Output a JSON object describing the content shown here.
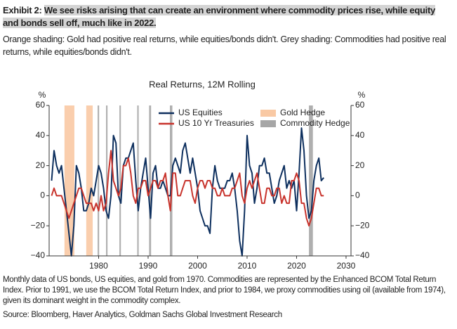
{
  "header": {
    "label": "Exhibit 2:",
    "title": "We see risks arising that can create an environment where commodity prices rise, while equity and bonds sell off, much like in 2022.",
    "subtitle": "Orange shading: Gold had positive real returns, while equities/bonds didn't. Grey shading: Commodities had positive real returns, while equities/bonds didn't."
  },
  "footer": {
    "note": "Monthly data of US bonds, US equities, and gold from 1970. Commodities are represented by the Enhanced BCOM Total Return Index. Prior to 1991, we use the BCOM Total Return Index, and prior to 1984, we proxy commodities using oil (available from 1974), given its dominant weight in the commodity complex.",
    "source": "Source: Bloomberg, Haver Analytics, Goldman Sachs Global Investment Research"
  },
  "chart_data": {
    "type": "line",
    "title": "Real Returns, 12M Rolling",
    "y_unit": "%",
    "y2_unit": "%",
    "x": [
      1970.5,
      1971,
      1971.5,
      1972,
      1972.5,
      1973,
      1973.5,
      1974,
      1974.5,
      1975,
      1975.5,
      1976,
      1976.5,
      1977,
      1977.5,
      1978,
      1978.5,
      1979,
      1979.5,
      1980,
      1980.5,
      1981,
      1981.5,
      1982,
      1982.5,
      1983,
      1983.5,
      1984,
      1984.5,
      1985,
      1985.5,
      1986,
      1986.5,
      1987,
      1987.5,
      1988,
      1988.5,
      1989,
      1989.5,
      1990,
      1990.5,
      1991,
      1991.5,
      1992,
      1992.5,
      1993,
      1993.5,
      1994,
      1994.5,
      1995,
      1995.5,
      1996,
      1996.5,
      1997,
      1997.5,
      1998,
      1998.5,
      1999,
      1999.5,
      2000,
      2000.5,
      2001,
      2001.5,
      2002,
      2002.5,
      2003,
      2003.5,
      2004,
      2004.5,
      2005,
      2005.5,
      2006,
      2006.5,
      2007,
      2007.5,
      2008,
      2008.5,
      2009,
      2009.5,
      2010,
      2010.5,
      2011,
      2011.5,
      2012,
      2012.5,
      2013,
      2013.5,
      2014,
      2014.5,
      2015,
      2015.5,
      2016,
      2016.5,
      2017,
      2017.5,
      2018,
      2018.5,
      2019,
      2019.5,
      2020,
      2020.5,
      2021,
      2021.5,
      2022,
      2022.5,
      2023,
      2023.5,
      2024,
      2024.5,
      2025,
      2025.5
    ],
    "series": [
      {
        "name": "US Equities",
        "color": "#0d2f5e",
        "values": [
          10,
          30,
          20,
          15,
          20,
          5,
          -10,
          -25,
          -40,
          -20,
          20,
          15,
          5,
          -10,
          -10,
          -5,
          5,
          0,
          10,
          20,
          15,
          5,
          -10,
          -15,
          0,
          40,
          35,
          0,
          -5,
          20,
          25,
          25,
          30,
          35,
          10,
          -10,
          5,
          15,
          25,
          5,
          -15,
          15,
          20,
          5,
          5,
          10,
          5,
          0,
          0,
          20,
          25,
          20,
          15,
          30,
          35,
          25,
          15,
          25,
          15,
          5,
          -10,
          -15,
          -20,
          -20,
          -25,
          5,
          20,
          10,
          5,
          5,
          5,
          10,
          10,
          15,
          5,
          -10,
          -30,
          -40,
          -10,
          40,
          20,
          15,
          -5,
          5,
          20,
          20,
          25,
          15,
          15,
          5,
          -5,
          0,
          10,
          15,
          20,
          5,
          10,
          5,
          10,
          -10,
          15,
          45,
          30,
          0,
          -15,
          -10,
          10,
          20,
          25,
          10,
          12
        ]
      },
      {
        "name": "US 10 Yr Treasuries",
        "color": "#c8332c",
        "values": [
          0,
          5,
          0,
          0,
          0,
          -5,
          -10,
          -15,
          -10,
          -5,
          0,
          5,
          5,
          0,
          -5,
          -5,
          -5,
          -10,
          -5,
          -10,
          0,
          -10,
          -5,
          15,
          30,
          10,
          5,
          0,
          5,
          20,
          20,
          25,
          15,
          0,
          -5,
          5,
          5,
          10,
          10,
          0,
          5,
          10,
          10,
          5,
          10,
          10,
          15,
          0,
          -10,
          15,
          15,
          0,
          0,
          5,
          10,
          10,
          10,
          0,
          -5,
          5,
          10,
          10,
          5,
          10,
          10,
          5,
          5,
          0,
          0,
          5,
          0,
          0,
          0,
          5,
          5,
          10,
          15,
          0,
          -5,
          5,
          10,
          5,
          10,
          15,
          5,
          -5,
          -5,
          5,
          5,
          0,
          0,
          5,
          5,
          -5,
          0,
          -5,
          -5,
          10,
          10,
          15,
          10,
          -5,
          -5,
          -15,
          -20,
          -15,
          -5,
          5,
          5,
          0,
          0
        ]
      }
    ],
    "bands": [
      {
        "name": "Gold Hedge",
        "color": "#f9c9a4",
        "spans": [
          [
            1973.1,
            1975.1
          ],
          [
            1977.5,
            1978.8
          ]
        ]
      },
      {
        "name": "Commodity Hedge",
        "color": "#a6a6a6",
        "spans": [
          [
            1979.8,
            1980.1
          ],
          [
            1981.5,
            1981.8
          ],
          [
            1984.2,
            1984.5
          ],
          [
            1987.8,
            1988.1
          ],
          [
            1990.2,
            1990.6
          ],
          [
            1994.4,
            1994.9
          ],
          [
            2022.5,
            2023.3
          ]
        ]
      }
    ],
    "xlim": [
      1970,
      2031
    ],
    "xticks": [
      1980,
      1990,
      2000,
      2010,
      2020,
      2030
    ],
    "ylim": [
      -40,
      60
    ],
    "yticks": [
      {
        "value": -40,
        "label": "−40"
      },
      {
        "value": -20,
        "label": "−20"
      },
      0,
      20,
      40,
      60
    ],
    "y2lim": [
      -40,
      60
    ],
    "y2ticks": [
      {
        "value": -40,
        "label": "−40"
      },
      {
        "value": -20,
        "label": "−20"
      },
      0,
      20,
      40,
      60
    ],
    "legend": "upper right"
  }
}
